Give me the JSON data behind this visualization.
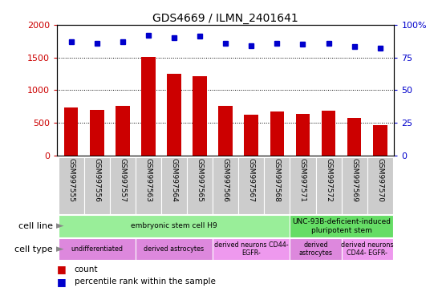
{
  "title": "GDS4669 / ILMN_2401641",
  "samples": [
    "GSM997555",
    "GSM997556",
    "GSM997557",
    "GSM997563",
    "GSM997564",
    "GSM997565",
    "GSM997566",
    "GSM997567",
    "GSM997568",
    "GSM997571",
    "GSM997572",
    "GSM997569",
    "GSM997570"
  ],
  "counts": [
    740,
    700,
    755,
    1510,
    1245,
    1210,
    755,
    620,
    670,
    640,
    680,
    580,
    470
  ],
  "percentiles": [
    87,
    86,
    87,
    92,
    90,
    91,
    86,
    84,
    86,
    85,
    86,
    83,
    82
  ],
  "ylim_left": [
    0,
    2000
  ],
  "ylim_right": [
    0,
    100
  ],
  "yticks_left": [
    0,
    500,
    1000,
    1500,
    2000
  ],
  "yticks_right": [
    0,
    25,
    50,
    75,
    100
  ],
  "bar_color": "#cc0000",
  "dot_color": "#0000cc",
  "tick_bg_color": "#cccccc",
  "cell_line_data": [
    {
      "label": "embryonic stem cell H9",
      "start": 0,
      "end": 9,
      "color": "#99ee99"
    },
    {
      "label": "UNC-93B-deficient-induced\npluripotent stem",
      "start": 9,
      "end": 13,
      "color": "#66dd66"
    }
  ],
  "cell_type_data": [
    {
      "label": "undifferentiated",
      "start": 0,
      "end": 3,
      "color": "#dd88dd"
    },
    {
      "label": "derived astrocytes",
      "start": 3,
      "end": 6,
      "color": "#dd88dd"
    },
    {
      "label": "derived neurons CD44-\nEGFR-",
      "start": 6,
      "end": 9,
      "color": "#ee99ee"
    },
    {
      "label": "derived\nastrocytes",
      "start": 9,
      "end": 11,
      "color": "#dd88dd"
    },
    {
      "label": "derived neurons\nCD44- EGFR-",
      "start": 11,
      "end": 13,
      "color": "#ee99ee"
    }
  ],
  "legend_items": [
    {
      "color": "#cc0000",
      "label": "count"
    },
    {
      "color": "#0000cc",
      "label": "percentile rank within the sample"
    }
  ]
}
